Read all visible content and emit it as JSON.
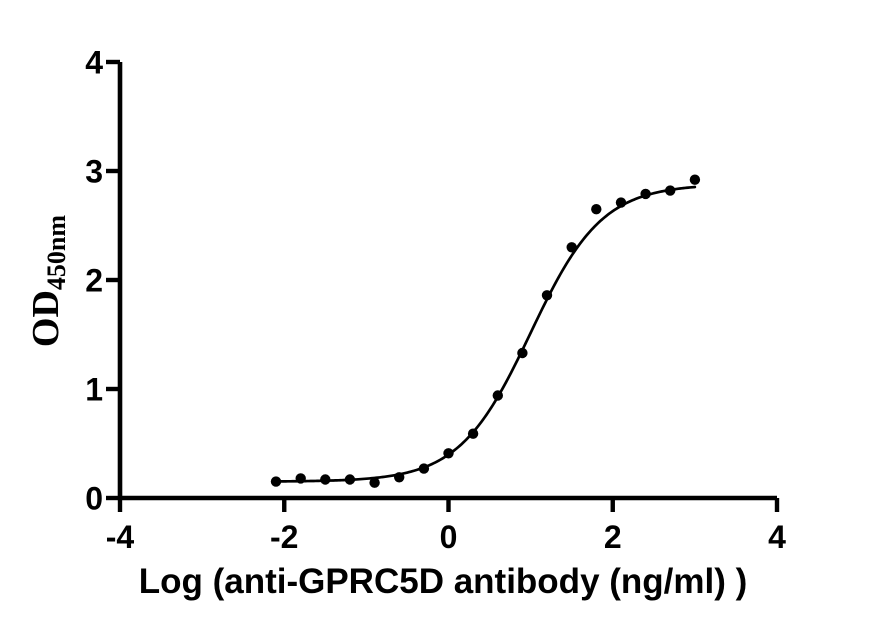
{
  "chart_data": {
    "type": "scatter",
    "xlabel": "Log (anti-GPRC5D antibody (ng/ml) )",
    "ylabel": "OD",
    "ylabel_sub": "450nm",
    "xlim": [
      -4,
      4
    ],
    "ylim": [
      0,
      4
    ],
    "xticks": [
      -4,
      -2,
      0,
      2,
      4
    ],
    "xtick_labels": [
      "-4",
      "-2",
      "0",
      "2",
      "4"
    ],
    "yticks": [
      0,
      1,
      2,
      3,
      4
    ],
    "ytick_labels": [
      "0",
      "1",
      "2",
      "3",
      "4"
    ],
    "grid": false,
    "legend": false,
    "x": [
      -2.1,
      -1.8,
      -1.5,
      -1.2,
      -0.9,
      -0.6,
      -0.3,
      0,
      0.3,
      0.6,
      0.9,
      1.2,
      1.5,
      1.8,
      2.1,
      2.4,
      2.7,
      3.0
    ],
    "y": [
      0.15,
      0.18,
      0.17,
      0.17,
      0.14,
      0.19,
      0.27,
      0.41,
      0.59,
      0.94,
      1.33,
      1.86,
      2.3,
      2.65,
      2.71,
      2.79,
      2.82,
      2.92
    ],
    "fit": {
      "model": "4PL-sigmoid",
      "bottom": 0.15,
      "top": 2.88,
      "logEC50": 1.0,
      "hill": 1.0,
      "curve_x_range": [
        -2.12,
        3.0
      ]
    },
    "marker_color": "#000000",
    "marker_radius": 5.2,
    "line_color": "#000000",
    "axis_color": "#000000",
    "background": "#ffffff"
  }
}
